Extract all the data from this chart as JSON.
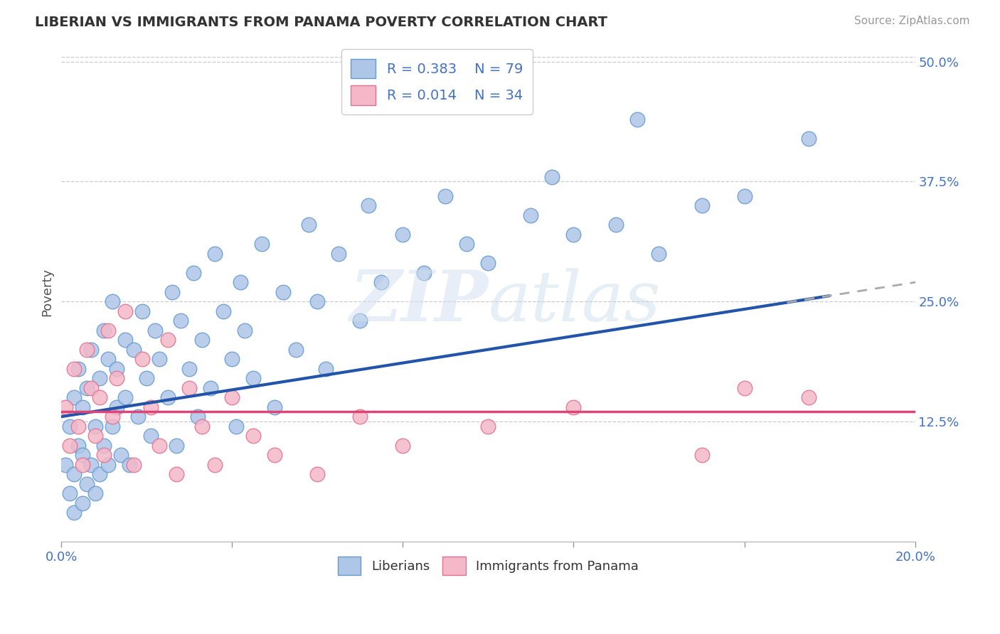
{
  "title": "LIBERIAN VS IMMIGRANTS FROM PANAMA POVERTY CORRELATION CHART",
  "source": "Source: ZipAtlas.com",
  "ylabel": "Poverty",
  "ytick_labels": [
    "12.5%",
    "25.0%",
    "37.5%",
    "50.0%"
  ],
  "ytick_values": [
    0.125,
    0.25,
    0.375,
    0.5
  ],
  "xmin": 0.0,
  "xmax": 0.2,
  "ymin": 0.0,
  "ymax": 0.52,
  "legend_blue_r": "R = 0.383",
  "legend_blue_n": "N = 79",
  "legend_pink_r": "R = 0.014",
  "legend_pink_n": "N = 34",
  "legend_label_blue": "Liberians",
  "legend_label_pink": "Immigrants from Panama",
  "blue_color": "#aec6e8",
  "blue_edge_color": "#6699cc",
  "pink_color": "#f4b8c8",
  "pink_edge_color": "#e07090",
  "blue_line_color": "#2255aa",
  "pink_line_color": "#dd4477",
  "gray_dash_color": "#aaaaaa",
  "background_color": "#ffffff",
  "grid_color": "#cccccc",
  "blue_scatter_x": [
    0.001,
    0.002,
    0.002,
    0.003,
    0.003,
    0.003,
    0.004,
    0.004,
    0.005,
    0.005,
    0.005,
    0.006,
    0.006,
    0.007,
    0.007,
    0.008,
    0.008,
    0.009,
    0.009,
    0.01,
    0.01,
    0.011,
    0.011,
    0.012,
    0.012,
    0.013,
    0.013,
    0.014,
    0.015,
    0.015,
    0.016,
    0.017,
    0.018,
    0.019,
    0.02,
    0.021,
    0.022,
    0.023,
    0.025,
    0.026,
    0.027,
    0.028,
    0.03,
    0.031,
    0.032,
    0.033,
    0.035,
    0.036,
    0.038,
    0.04,
    0.041,
    0.042,
    0.043,
    0.045,
    0.047,
    0.05,
    0.052,
    0.055,
    0.058,
    0.06,
    0.062,
    0.065,
    0.07,
    0.072,
    0.075,
    0.08,
    0.085,
    0.09,
    0.095,
    0.1,
    0.11,
    0.115,
    0.12,
    0.13,
    0.135,
    0.14,
    0.15,
    0.16,
    0.175
  ],
  "blue_scatter_y": [
    0.08,
    0.05,
    0.12,
    0.03,
    0.07,
    0.15,
    0.1,
    0.18,
    0.04,
    0.09,
    0.14,
    0.06,
    0.16,
    0.08,
    0.2,
    0.05,
    0.12,
    0.07,
    0.17,
    0.1,
    0.22,
    0.08,
    0.19,
    0.12,
    0.25,
    0.14,
    0.18,
    0.09,
    0.21,
    0.15,
    0.08,
    0.2,
    0.13,
    0.24,
    0.17,
    0.11,
    0.22,
    0.19,
    0.15,
    0.26,
    0.1,
    0.23,
    0.18,
    0.28,
    0.13,
    0.21,
    0.16,
    0.3,
    0.24,
    0.19,
    0.12,
    0.27,
    0.22,
    0.17,
    0.31,
    0.14,
    0.26,
    0.2,
    0.33,
    0.25,
    0.18,
    0.3,
    0.23,
    0.35,
    0.27,
    0.32,
    0.28,
    0.36,
    0.31,
    0.29,
    0.34,
    0.38,
    0.32,
    0.33,
    0.44,
    0.3,
    0.35,
    0.36,
    0.42
  ],
  "pink_scatter_x": [
    0.001,
    0.002,
    0.003,
    0.004,
    0.005,
    0.006,
    0.007,
    0.008,
    0.009,
    0.01,
    0.011,
    0.012,
    0.013,
    0.015,
    0.017,
    0.019,
    0.021,
    0.023,
    0.025,
    0.027,
    0.03,
    0.033,
    0.036,
    0.04,
    0.045,
    0.05,
    0.06,
    0.07,
    0.08,
    0.1,
    0.12,
    0.15,
    0.16,
    0.175
  ],
  "pink_scatter_y": [
    0.14,
    0.1,
    0.18,
    0.12,
    0.08,
    0.2,
    0.16,
    0.11,
    0.15,
    0.09,
    0.22,
    0.13,
    0.17,
    0.24,
    0.08,
    0.19,
    0.14,
    0.1,
    0.21,
    0.07,
    0.16,
    0.12,
    0.08,
    0.15,
    0.11,
    0.09,
    0.07,
    0.13,
    0.1,
    0.12,
    0.14,
    0.09,
    0.16,
    0.15
  ]
}
